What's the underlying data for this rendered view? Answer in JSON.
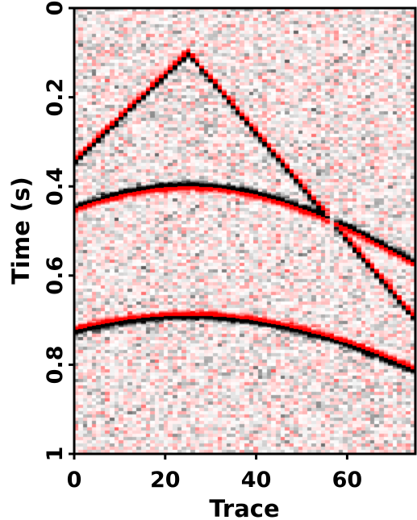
{
  "chart_data": {
    "type": "heatmap",
    "subtype": "seismic-section",
    "title": "",
    "xlabel": "Trace",
    "ylabel": "Time (s)",
    "xlim": [
      0,
      75
    ],
    "ylim": [
      1,
      0
    ],
    "x_ticks": [
      0,
      20,
      40,
      60
    ],
    "x_tick_labels": [
      "0",
      "20",
      "40",
      "60"
    ],
    "y_ticks": [
      0,
      0.2,
      0.4,
      0.6,
      0.8,
      1
    ],
    "y_tick_labels": [
      "0",
      "0.2",
      "0.4",
      "0.6",
      "0.8",
      "1"
    ],
    "colormap": {
      "negative": "#ff0000",
      "zero": "#ffffff",
      "positive": "#000000"
    },
    "series": [
      {
        "shape": "linear-moveout",
        "apex_trace": 25,
        "apex_time_s": 0.1,
        "time_at_x0_s": 0.34,
        "time_at_x75_s": 0.69,
        "polarity": "red-over-black"
      },
      {
        "shape": "hyperbola",
        "apex_trace": 25,
        "apex_time_s": 0.4,
        "time_at_x0_s": 0.44,
        "time_at_x75_s": 0.57,
        "polarity": "black-over-red"
      },
      {
        "shape": "hyperbola",
        "apex_trace": 25,
        "apex_time_s": 0.69,
        "time_at_x0_s": 0.72,
        "time_at_x75_s": 0.81,
        "polarity": "red-over-black"
      }
    ],
    "background": "random-noise",
    "grid": false,
    "legend": "none"
  }
}
